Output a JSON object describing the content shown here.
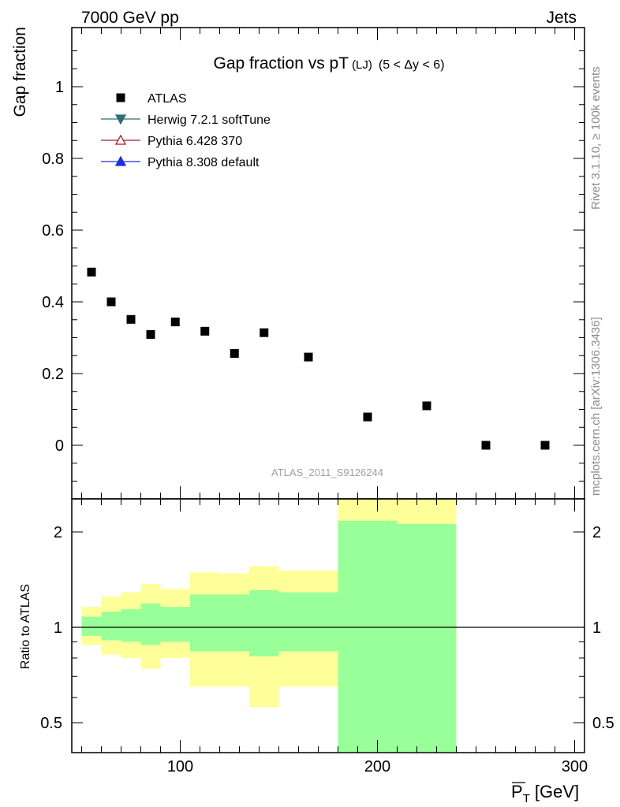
{
  "header": {
    "left": "7000 GeV pp",
    "right": "Jets"
  },
  "side_text": {
    "rivet": "Rivet 3.1.10, ≥ 100k events",
    "mcplots": "mcplots.cern.ch [arXiv:1306.3436]"
  },
  "colors": {
    "atlas": "#000000",
    "herwig": "#2f6f73",
    "pythia6": "#a31d24",
    "pythia8": "#1f2fd6",
    "band_outer": "#ffff99",
    "band_inner": "#99ff99",
    "watermark": "#a0a0a0"
  },
  "chart_data": [
    {
      "type": "scatter",
      "title": "Gap fraction vs pT",
      "title_sub": "(LJ)",
      "title_range": "(5 < Δy < 6)",
      "ylabel": "Gap fraction",
      "watermark": "ATLAS_2011_S9126244",
      "xlim": [
        45,
        305
      ],
      "ylim": [
        -0.15,
        1.16
      ],
      "yticks": [
        "0",
        "0.2",
        "0.4",
        "0.6",
        "0.8",
        "1"
      ],
      "legend_position": "top-left",
      "legend": [
        {
          "name": "ATLAS",
          "marker": "square-filled",
          "color": "#000000"
        },
        {
          "name": "Herwig 7.2.1 softTune",
          "marker": "triangle-down-filled",
          "color": "#2f6f73"
        },
        {
          "name": "Pythia 6.428 370",
          "marker": "triangle-up-open",
          "color": "#a31d24"
        },
        {
          "name": "Pythia 8.308 default",
          "marker": "triangle-up-filled",
          "color": "#1f2fd6"
        }
      ],
      "series": [
        {
          "name": "ATLAS",
          "x": [
            55,
            65,
            75,
            85,
            97.5,
            112.5,
            127.5,
            142.5,
            165,
            195,
            225,
            255,
            285
          ],
          "y": [
            0.483,
            0.4,
            0.351,
            0.309,
            0.344,
            0.318,
            0.256,
            0.314,
            0.246,
            0.079,
            0.11,
            0.0,
            0.0
          ]
        }
      ]
    },
    {
      "type": "area",
      "ylabel": "Ratio to ATLAS",
      "xlabel": "P̄T [GeV]",
      "xlabel_main": "P",
      "xlabel_sub": "T",
      "xlabel_unit": "[GeV]",
      "xlim": [
        45,
        305
      ],
      "ylim": [
        0.35,
        2.3
      ],
      "xticks": [
        "100",
        "200",
        "300"
      ],
      "yticks": [
        "0.5",
        "1",
        "2"
      ],
      "reference": 1,
      "bands": [
        {
          "x0": 50,
          "x1": 60,
          "outer": [
            0.88,
            1.16
          ],
          "inner": [
            0.94,
            1.08
          ]
        },
        {
          "x0": 60,
          "x1": 70,
          "outer": [
            0.82,
            1.25
          ],
          "inner": [
            0.91,
            1.12
          ]
        },
        {
          "x0": 70,
          "x1": 80,
          "outer": [
            0.8,
            1.29
          ],
          "inner": [
            0.9,
            1.14
          ]
        },
        {
          "x0": 80,
          "x1": 90,
          "outer": [
            0.74,
            1.37
          ],
          "inner": [
            0.88,
            1.19
          ]
        },
        {
          "x0": 90,
          "x1": 105,
          "outer": [
            0.8,
            1.32
          ],
          "inner": [
            0.9,
            1.16
          ]
        },
        {
          "x0": 105,
          "x1": 120,
          "outer": [
            0.65,
            1.49
          ],
          "inner": [
            0.84,
            1.27
          ]
        },
        {
          "x0": 120,
          "x1": 135,
          "outer": [
            0.65,
            1.48
          ],
          "inner": [
            0.84,
            1.27
          ]
        },
        {
          "x0": 135,
          "x1": 150,
          "outer": [
            0.56,
            1.56
          ],
          "inner": [
            0.81,
            1.31
          ]
        },
        {
          "x0": 150,
          "x1": 180,
          "outer": [
            0.65,
            1.51
          ],
          "inner": [
            0.84,
            1.29
          ]
        },
        {
          "x0": 180,
          "x1": 210,
          "outer": [
            0.2,
            2.6
          ],
          "inner": [
            0.2,
            2.17
          ]
        },
        {
          "x0": 210,
          "x1": 240,
          "outer": [
            0.2,
            2.6
          ],
          "inner": [
            0.2,
            2.12
          ]
        }
      ]
    }
  ]
}
